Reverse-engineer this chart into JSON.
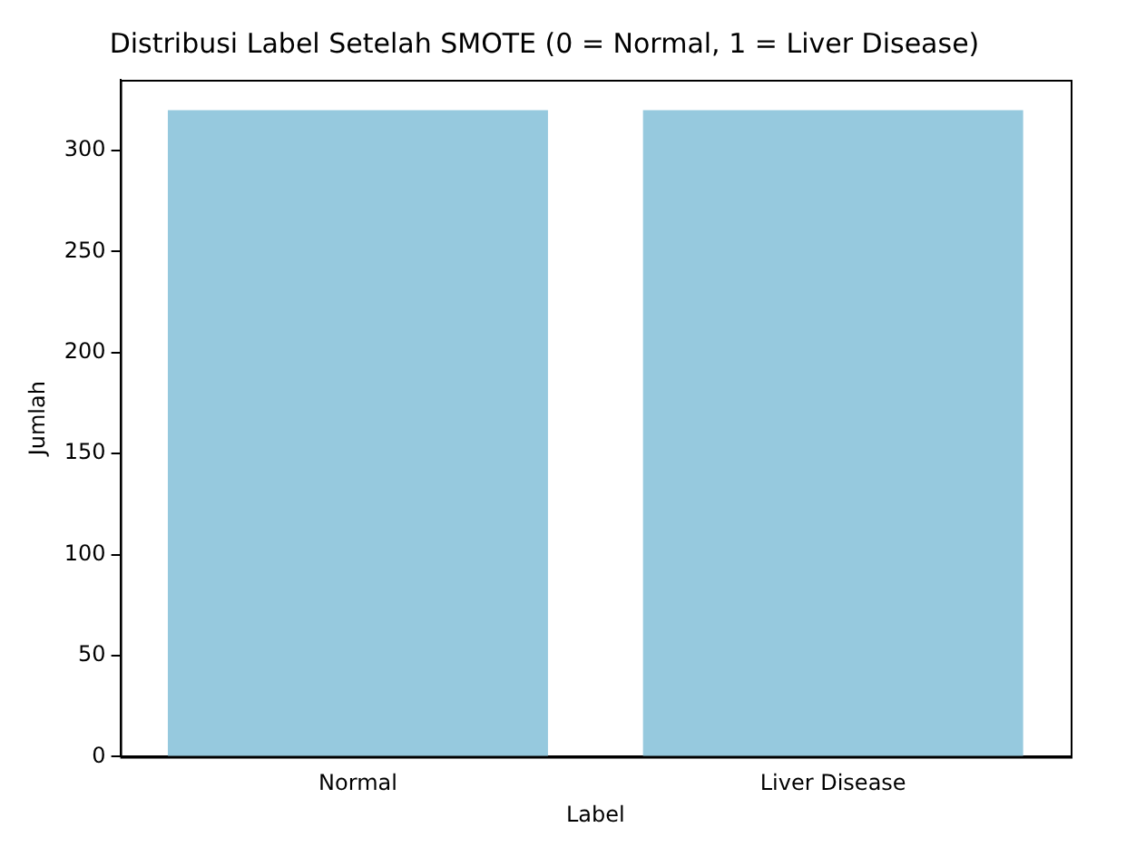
{
  "chart_data": {
    "type": "bar",
    "title": "Distribusi Label Setelah SMOTE (0 = Normal, 1 = Liver Disease)",
    "xlabel": "Label",
    "ylabel": "Jumlah",
    "categories": [
      "Normal",
      "Liver Disease"
    ],
    "values": [
      320,
      320
    ],
    "color": "#96c9de",
    "ylim": [
      0,
      335
    ],
    "yticks": [
      0,
      50,
      100,
      150,
      200,
      250,
      300
    ],
    "grid": false,
    "legend": false
  }
}
